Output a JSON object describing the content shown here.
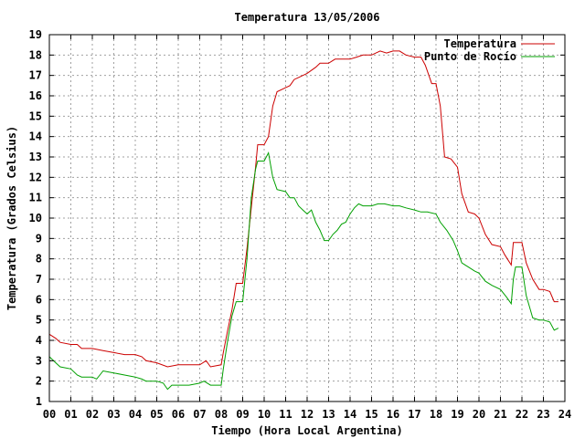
{
  "chart_data": {
    "type": "line",
    "title": "Temperatura 13/05/2006",
    "xlabel": "Tiempo (Hora Local Argentina)",
    "ylabel": "Temperatura (Grados Celsius)",
    "xlim": [
      0,
      24
    ],
    "ylim": [
      1,
      19
    ],
    "grid": true,
    "legend_position": "top-right",
    "x_tick_labels": [
      "00",
      "01",
      "02",
      "03",
      "04",
      "05",
      "06",
      "07",
      "08",
      "09",
      "10",
      "11",
      "12",
      "13",
      "14",
      "15",
      "16",
      "17",
      "18",
      "19",
      "20",
      "21",
      "22",
      "23",
      "24"
    ],
    "y_tick_labels": [
      "1",
      "2",
      "3",
      "4",
      "5",
      "6",
      "7",
      "8",
      "9",
      "10",
      "11",
      "12",
      "13",
      "14",
      "15",
      "16",
      "17",
      "18",
      "19"
    ],
    "series": [
      {
        "name": "Temperatura",
        "color": "#cc0000",
        "points": [
          [
            0.0,
            4.3
          ],
          [
            0.3,
            4.1
          ],
          [
            0.5,
            3.9
          ],
          [
            1.0,
            3.8
          ],
          [
            1.3,
            3.8
          ],
          [
            1.5,
            3.6
          ],
          [
            2.0,
            3.6
          ],
          [
            2.5,
            3.5
          ],
          [
            3.0,
            3.4
          ],
          [
            3.5,
            3.3
          ],
          [
            4.0,
            3.3
          ],
          [
            4.3,
            3.2
          ],
          [
            4.5,
            3.0
          ],
          [
            5.0,
            2.9
          ],
          [
            5.5,
            2.7
          ],
          [
            6.0,
            2.8
          ],
          [
            6.5,
            2.8
          ],
          [
            7.0,
            2.8
          ],
          [
            7.3,
            3.0
          ],
          [
            7.5,
            2.7
          ],
          [
            8.0,
            2.8
          ],
          [
            8.1,
            3.4
          ],
          [
            8.3,
            4.5
          ],
          [
            8.5,
            5.5
          ],
          [
            8.7,
            6.8
          ],
          [
            9.0,
            6.8
          ],
          [
            9.2,
            8.5
          ],
          [
            9.4,
            10.5
          ],
          [
            9.6,
            12.5
          ],
          [
            9.7,
            13.6
          ],
          [
            10.0,
            13.6
          ],
          [
            10.2,
            14.0
          ],
          [
            10.4,
            15.5
          ],
          [
            10.6,
            16.2
          ],
          [
            11.0,
            16.4
          ],
          [
            11.2,
            16.5
          ],
          [
            11.4,
            16.8
          ],
          [
            11.6,
            16.9
          ],
          [
            12.0,
            17.1
          ],
          [
            12.4,
            17.4
          ],
          [
            12.6,
            17.6
          ],
          [
            13.0,
            17.6
          ],
          [
            13.3,
            17.8
          ],
          [
            13.6,
            17.8
          ],
          [
            14.0,
            17.8
          ],
          [
            14.3,
            17.9
          ],
          [
            14.6,
            18.0
          ],
          [
            15.0,
            18.0
          ],
          [
            15.4,
            18.2
          ],
          [
            15.7,
            18.1
          ],
          [
            16.0,
            18.2
          ],
          [
            16.3,
            18.2
          ],
          [
            16.6,
            18.0
          ],
          [
            17.0,
            17.9
          ],
          [
            17.3,
            17.9
          ],
          [
            17.5,
            17.5
          ],
          [
            17.8,
            16.6
          ],
          [
            18.0,
            16.6
          ],
          [
            18.2,
            15.5
          ],
          [
            18.4,
            13.0
          ],
          [
            18.7,
            12.9
          ],
          [
            19.0,
            12.5
          ],
          [
            19.2,
            11.2
          ],
          [
            19.5,
            10.3
          ],
          [
            19.8,
            10.2
          ],
          [
            20.0,
            10.0
          ],
          [
            20.3,
            9.2
          ],
          [
            20.6,
            8.7
          ],
          [
            21.0,
            8.6
          ],
          [
            21.2,
            8.2
          ],
          [
            21.5,
            7.7
          ],
          [
            21.6,
            8.8
          ],
          [
            22.0,
            8.8
          ],
          [
            22.2,
            7.8
          ],
          [
            22.5,
            7.0
          ],
          [
            22.8,
            6.5
          ],
          [
            23.0,
            6.5
          ],
          [
            23.3,
            6.4
          ],
          [
            23.5,
            5.9
          ],
          [
            23.7,
            5.9
          ]
        ]
      },
      {
        "name": "Punto de Rocío",
        "color": "#00a000",
        "points": [
          [
            0.0,
            3.2
          ],
          [
            0.3,
            2.9
          ],
          [
            0.5,
            2.7
          ],
          [
            1.0,
            2.6
          ],
          [
            1.3,
            2.3
          ],
          [
            1.5,
            2.2
          ],
          [
            2.0,
            2.2
          ],
          [
            2.2,
            2.1
          ],
          [
            2.5,
            2.5
          ],
          [
            3.0,
            2.4
          ],
          [
            3.5,
            2.3
          ],
          [
            4.0,
            2.2
          ],
          [
            4.3,
            2.1
          ],
          [
            4.5,
            2.0
          ],
          [
            5.0,
            2.0
          ],
          [
            5.3,
            1.9
          ],
          [
            5.5,
            1.6
          ],
          [
            5.7,
            1.8
          ],
          [
            6.0,
            1.8
          ],
          [
            6.5,
            1.8
          ],
          [
            7.0,
            1.9
          ],
          [
            7.2,
            2.0
          ],
          [
            7.5,
            1.8
          ],
          [
            8.0,
            1.8
          ],
          [
            8.1,
            2.6
          ],
          [
            8.3,
            4.0
          ],
          [
            8.5,
            5.2
          ],
          [
            8.7,
            5.9
          ],
          [
            9.0,
            5.9
          ],
          [
            9.2,
            8.0
          ],
          [
            9.4,
            11.0
          ],
          [
            9.6,
            12.4
          ],
          [
            9.7,
            12.8
          ],
          [
            10.0,
            12.8
          ],
          [
            10.2,
            13.2
          ],
          [
            10.4,
            12.0
          ],
          [
            10.6,
            11.4
          ],
          [
            11.0,
            11.3
          ],
          [
            11.2,
            11.0
          ],
          [
            11.4,
            11.0
          ],
          [
            11.6,
            10.6
          ],
          [
            11.8,
            10.4
          ],
          [
            12.0,
            10.2
          ],
          [
            12.2,
            10.4
          ],
          [
            12.4,
            9.8
          ],
          [
            12.6,
            9.4
          ],
          [
            12.8,
            8.9
          ],
          [
            13.0,
            8.9
          ],
          [
            13.2,
            9.2
          ],
          [
            13.4,
            9.4
          ],
          [
            13.6,
            9.7
          ],
          [
            13.8,
            9.8
          ],
          [
            14.0,
            10.2
          ],
          [
            14.2,
            10.5
          ],
          [
            14.4,
            10.7
          ],
          [
            14.6,
            10.6
          ],
          [
            15.0,
            10.6
          ],
          [
            15.3,
            10.7
          ],
          [
            15.6,
            10.7
          ],
          [
            16.0,
            10.6
          ],
          [
            16.3,
            10.6
          ],
          [
            16.6,
            10.5
          ],
          [
            17.0,
            10.4
          ],
          [
            17.3,
            10.3
          ],
          [
            17.6,
            10.3
          ],
          [
            18.0,
            10.2
          ],
          [
            18.2,
            9.8
          ],
          [
            18.5,
            9.4
          ],
          [
            18.8,
            8.9
          ],
          [
            19.0,
            8.4
          ],
          [
            19.2,
            7.8
          ],
          [
            19.5,
            7.6
          ],
          [
            19.8,
            7.4
          ],
          [
            20.0,
            7.3
          ],
          [
            20.3,
            6.9
          ],
          [
            20.6,
            6.7
          ],
          [
            21.0,
            6.5
          ],
          [
            21.3,
            6.1
          ],
          [
            21.5,
            5.8
          ],
          [
            21.6,
            7.0
          ],
          [
            21.7,
            7.6
          ],
          [
            22.0,
            7.6
          ],
          [
            22.2,
            6.2
          ],
          [
            22.5,
            5.1
          ],
          [
            22.8,
            5.0
          ],
          [
            23.0,
            5.0
          ],
          [
            23.3,
            4.9
          ],
          [
            23.5,
            4.5
          ],
          [
            23.7,
            4.6
          ]
        ]
      }
    ]
  }
}
